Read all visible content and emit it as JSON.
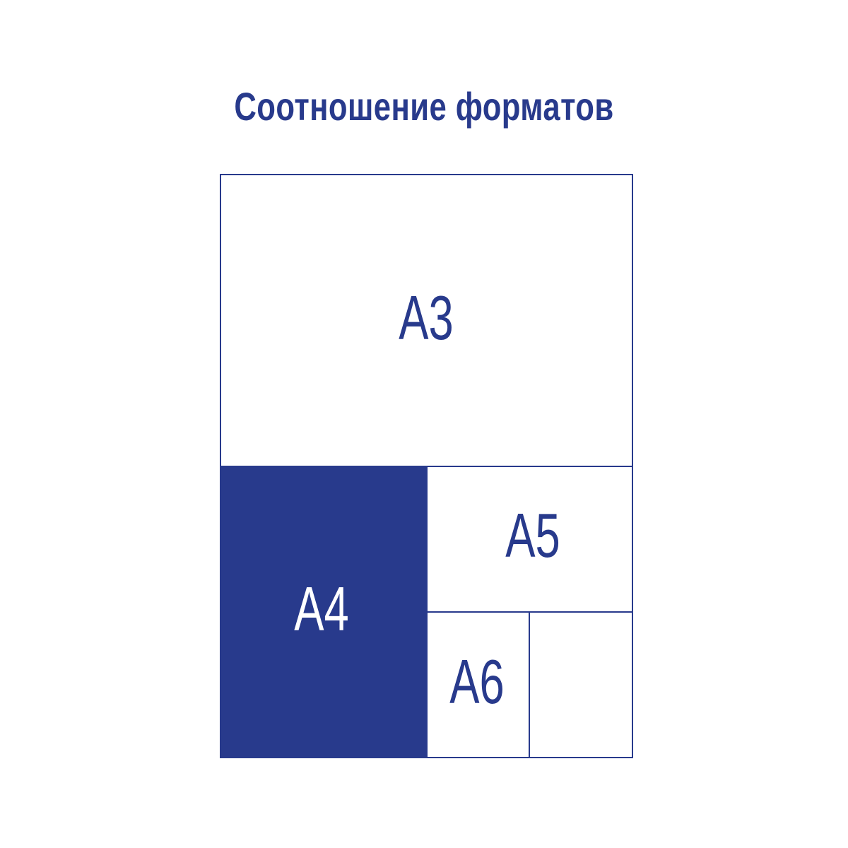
{
  "title": "Соотношение форматов",
  "colors": {
    "primary": "#283a8c",
    "background": "#ffffff"
  },
  "formats": {
    "a3": "A3",
    "a4": "A4",
    "a5": "A5",
    "a6": "A6"
  }
}
